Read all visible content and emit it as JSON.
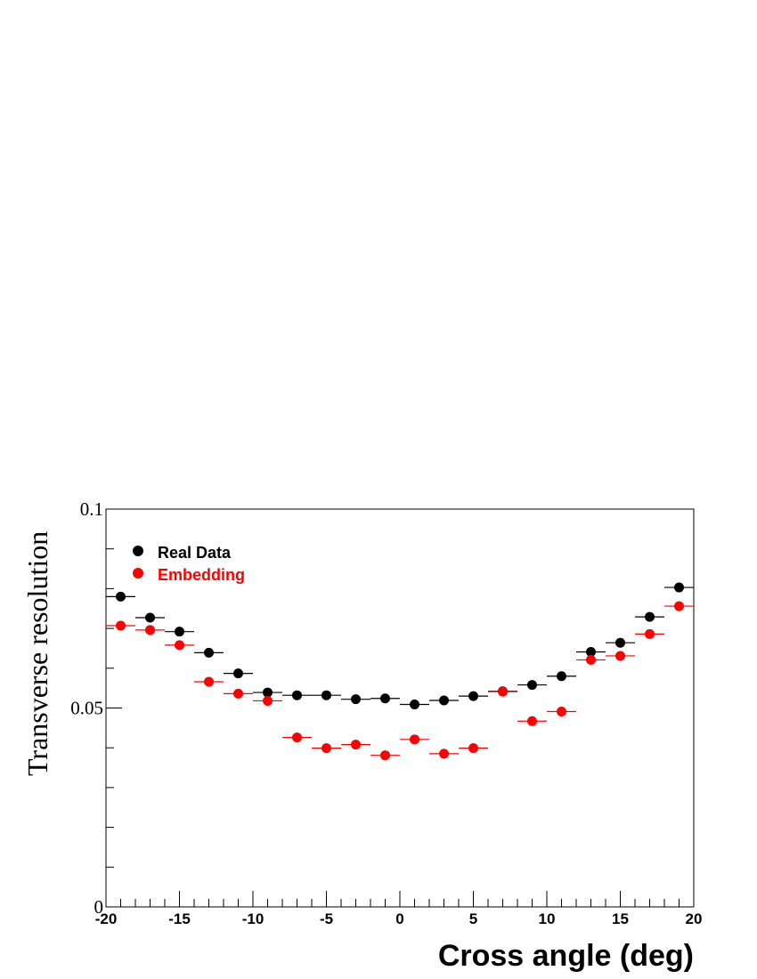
{
  "chart_data": {
    "type": "scatter",
    "title": "",
    "xlabel": "Cross angle (deg)",
    "ylabel": "Transverse resolution",
    "xlim": [
      -20,
      20
    ],
    "ylim": [
      0,
      0.1
    ],
    "x_ticks": [
      "-20",
      "-15",
      "-10",
      "-5",
      "0",
      "5",
      "10",
      "15",
      "20"
    ],
    "y_ticks": [
      "0",
      "0.05",
      "0.1"
    ],
    "grid": false,
    "legend_position": "top-left",
    "bin_width": 2,
    "series": [
      {
        "name": "Real Data",
        "color": "#000000",
        "x": [
          -19,
          -17,
          -15,
          -13,
          -11,
          -9,
          -7,
          -5,
          -3,
          -1,
          1,
          3,
          5,
          7,
          9,
          11,
          13,
          15,
          17,
          19
        ],
        "y": [
          0.078,
          0.0727,
          0.0692,
          0.0639,
          0.0587,
          0.0539,
          0.0532,
          0.0532,
          0.0522,
          0.0524,
          0.0509,
          0.0519,
          0.053,
          0.0542,
          0.0558,
          0.058,
          0.0641,
          0.0664,
          0.0729,
          0.0803
        ],
        "yerr": [
          0.0006,
          0.0006,
          0.0006,
          0.0006,
          0.0006,
          0.0006,
          0.0006,
          0.0006,
          0.0006,
          0.0006,
          0.0006,
          0.0006,
          0.0006,
          0.0006,
          0.0006,
          0.0006,
          0.0006,
          0.0006,
          0.0006,
          0.0006
        ]
      },
      {
        "name": "Embedding",
        "color": "#ff0000",
        "x": [
          -19,
          -17,
          -15,
          -13,
          -11,
          -9,
          -7,
          -5,
          -3,
          -1,
          1,
          3,
          5,
          7,
          9,
          11,
          13,
          15,
          17,
          19
        ],
        "y": [
          0.0707,
          0.0696,
          0.0658,
          0.0566,
          0.0536,
          0.0518,
          0.0426,
          0.0399,
          0.0408,
          0.0381,
          0.0421,
          0.0385,
          0.0399,
          0.0541,
          0.0467,
          0.0491,
          0.0621,
          0.0631,
          0.0686,
          0.0756
        ],
        "yerr": [
          0.0012,
          0.0012,
          0.0012,
          0.0012,
          0.0012,
          0.0012,
          0.0012,
          0.0012,
          0.0012,
          0.0012,
          0.0012,
          0.0012,
          0.0012,
          0.0012,
          0.0012,
          0.0012,
          0.0012,
          0.0012,
          0.0012,
          0.0012
        ]
      }
    ]
  }
}
